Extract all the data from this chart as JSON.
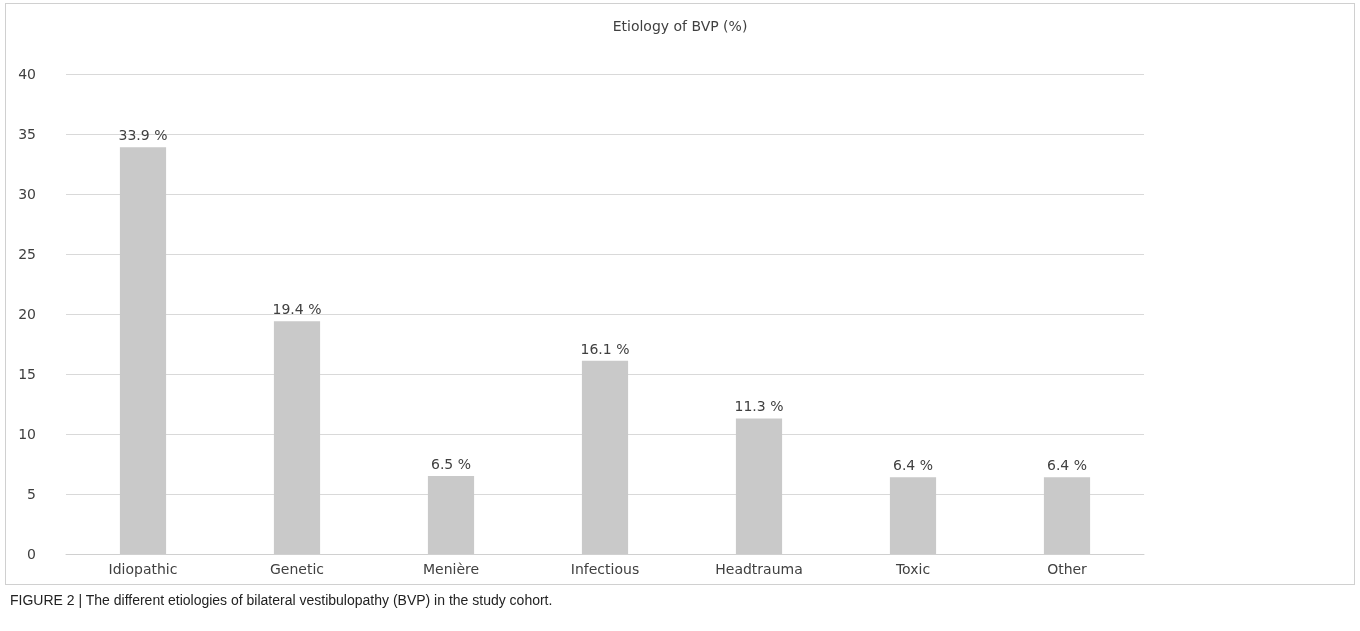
{
  "chart_data": {
    "type": "bar",
    "title": "Etiology of BVP (%)",
    "categories": [
      "Idiopathic",
      "Genetic",
      "Menière",
      "Infectious",
      "Headtrauma",
      "Toxic",
      "Other"
    ],
    "values": [
      33.9,
      19.4,
      6.5,
      16.1,
      11.3,
      6.4,
      6.4
    ],
    "value_labels": [
      "33.9 %",
      "19.4 %",
      "6.5 %",
      "16.1 %",
      "11.3 %",
      "6.4 %",
      "6.4 %"
    ],
    "color": "#c9c9c9",
    "ylim": [
      0,
      40
    ],
    "yticks": [
      0,
      5,
      10,
      15,
      20,
      25,
      30,
      35,
      40
    ],
    "grid": "y",
    "annotations": [
      "FIGURE 2 | The different etiologies of bilateral vestibulopathy (BVP) in the study cohort."
    ]
  }
}
